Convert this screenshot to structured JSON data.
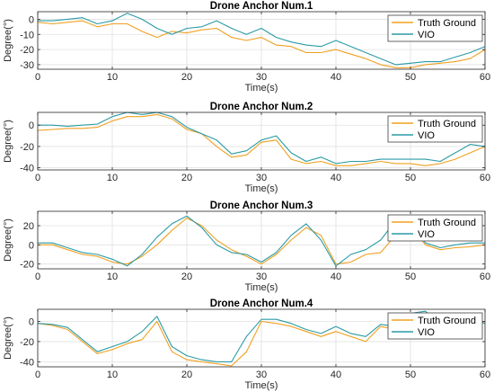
{
  "colors": {
    "truth": "#F0A020",
    "vio": "#2A9BA5",
    "axis": "#262626",
    "grid": "#E0E0E0"
  },
  "chart_data": [
    {
      "type": "line",
      "title": "Drone Anchor Num.1",
      "xlabel": "Time(s)",
      "ylabel": "Degree(°)",
      "xlim": [
        0,
        60
      ],
      "ylim": [
        -33,
        5
      ],
      "xticks": [
        "0",
        "10",
        "20",
        "30",
        "40",
        "50",
        "60"
      ],
      "yticks": [
        0,
        -10,
        -20,
        -30
      ],
      "ytick_labels": [
        "0",
        "-10",
        "-20",
        "-30"
      ],
      "grid": true,
      "legend": "top-right",
      "x": [
        0,
        2,
        4,
        6,
        8,
        10,
        12,
        14,
        16,
        18,
        20,
        22,
        24,
        26,
        28,
        30,
        32,
        34,
        36,
        38,
        40,
        42,
        44,
        46,
        48,
        50,
        52,
        54,
        56,
        58,
        60
      ],
      "series": [
        {
          "name": "Truth Ground",
          "color_key": "truth",
          "values": [
            -2,
            -3,
            -2,
            -1,
            -5,
            -3,
            -3,
            -8,
            -12,
            -8,
            -9,
            -7,
            -6,
            -12,
            -14,
            -12,
            -17,
            -18,
            -22,
            -22,
            -20,
            -23,
            -26,
            -30,
            -32,
            -32,
            -30,
            -29,
            -28,
            -26,
            -20
          ]
        },
        {
          "name": "VIO",
          "color_key": "vio",
          "values": [
            -1,
            -1,
            0,
            1,
            -3,
            -1,
            4,
            0,
            -6,
            -10,
            -6,
            -5,
            -1,
            -6,
            -10,
            -6,
            -12,
            -15,
            -17,
            -18,
            -14,
            -18,
            -22,
            -26,
            -30,
            -29,
            -28,
            -28,
            -25,
            -22,
            -18
          ]
        }
      ]
    },
    {
      "type": "line",
      "title": "Drone Anchor Num.2",
      "xlabel": "Time(s)",
      "ylabel": "Degree(°)",
      "xlim": [
        0,
        60
      ],
      "ylim": [
        -42,
        12
      ],
      "xticks": [
        "0",
        "10",
        "20",
        "30",
        "40",
        "50",
        "60"
      ],
      "yticks": [
        0,
        -20,
        -40
      ],
      "ytick_labels": [
        "0",
        "-20",
        "-40"
      ],
      "grid": true,
      "legend": "top-right",
      "x": [
        0,
        2,
        4,
        6,
        8,
        10,
        12,
        14,
        16,
        18,
        20,
        22,
        24,
        26,
        28,
        30,
        32,
        34,
        36,
        38,
        40,
        42,
        44,
        46,
        48,
        50,
        52,
        54,
        56,
        58,
        60
      ],
      "series": [
        {
          "name": "Truth Ground",
          "color_key": "truth",
          "values": [
            -5,
            -4,
            -3,
            -3,
            -2,
            4,
            8,
            8,
            10,
            6,
            -4,
            -8,
            -20,
            -30,
            -28,
            -16,
            -14,
            -32,
            -36,
            -34,
            -38,
            -38,
            -36,
            -34,
            -36,
            -36,
            -38,
            -36,
            -32,
            -26,
            -20
          ]
        },
        {
          "name": "VIO",
          "color_key": "vio",
          "values": [
            0,
            0,
            -1,
            0,
            1,
            8,
            12,
            10,
            12,
            8,
            -2,
            -8,
            -14,
            -27,
            -24,
            -14,
            -10,
            -26,
            -34,
            -30,
            -36,
            -34,
            -34,
            -32,
            -32,
            -32,
            -32,
            -34,
            -26,
            -18,
            -20
          ]
        }
      ]
    },
    {
      "type": "line",
      "title": "Drone Anchor Num.3",
      "xlabel": "Time(s)",
      "ylabel": "Degree(°)",
      "xlim": [
        0,
        60
      ],
      "ylim": [
        -25,
        35
      ],
      "xticks": [
        "0",
        "10",
        "20",
        "30",
        "40",
        "50",
        "60"
      ],
      "yticks": [
        20,
        0,
        -20
      ],
      "ytick_labels": [
        "20",
        "0",
        "-20"
      ],
      "grid": true,
      "legend": "top-right",
      "x": [
        0,
        2,
        4,
        6,
        8,
        10,
        12,
        14,
        16,
        18,
        20,
        22,
        24,
        26,
        28,
        30,
        32,
        34,
        36,
        38,
        40,
        42,
        44,
        46,
        48,
        50,
        52,
        54,
        56,
        58,
        60
      ],
      "series": [
        {
          "name": "Truth Ground",
          "color_key": "truth",
          "values": [
            0,
            0,
            -5,
            -10,
            -12,
            -18,
            -20,
            -12,
            0,
            15,
            28,
            20,
            5,
            -5,
            -12,
            -20,
            -10,
            5,
            18,
            10,
            -20,
            -18,
            -10,
            -8,
            10,
            20,
            0,
            -5,
            -3,
            -2,
            0
          ]
        },
        {
          "name": "VIO",
          "color_key": "vio",
          "values": [
            2,
            2,
            -3,
            -8,
            -10,
            -15,
            -22,
            -10,
            8,
            22,
            30,
            18,
            0,
            -8,
            -10,
            -18,
            -8,
            10,
            22,
            5,
            -22,
            -10,
            -5,
            5,
            25,
            24,
            2,
            -3,
            0,
            2,
            2
          ]
        }
      ]
    },
    {
      "type": "line",
      "title": "Drone Anchor Num.4",
      "xlabel": "Time(s)",
      "ylabel": "Degree(°)",
      "xlim": [
        0,
        60
      ],
      "ylim": [
        -45,
        12
      ],
      "xticks": [
        "0",
        "10",
        "20",
        "30",
        "40",
        "50",
        "60"
      ],
      "yticks": [
        0,
        -20,
        -40
      ],
      "ytick_labels": [
        "0",
        "-20",
        "-40"
      ],
      "grid": true,
      "legend": "top-right",
      "x": [
        0,
        2,
        4,
        6,
        8,
        10,
        12,
        14,
        16,
        18,
        20,
        22,
        24,
        26,
        28,
        30,
        32,
        34,
        36,
        38,
        40,
        42,
        44,
        46,
        48,
        50,
        52,
        54,
        56,
        58,
        60
      ],
      "series": [
        {
          "name": "Truth Ground",
          "color_key": "truth",
          "values": [
            -2,
            -4,
            -8,
            -20,
            -32,
            -28,
            -22,
            -18,
            0,
            -30,
            -38,
            -40,
            -42,
            -44,
            -30,
            0,
            -2,
            -5,
            -10,
            -15,
            -10,
            -15,
            -20,
            -5,
            -8,
            5,
            8,
            -5,
            -2,
            -2,
            0
          ]
        },
        {
          "name": "VIO",
          "color_key": "vio",
          "values": [
            -2,
            -3,
            -6,
            -18,
            -30,
            -25,
            -20,
            -10,
            5,
            -25,
            -34,
            -38,
            -40,
            -40,
            -15,
            2,
            2,
            -2,
            -8,
            -12,
            -5,
            -12,
            -15,
            -3,
            -5,
            8,
            10,
            -2,
            0,
            2,
            -2
          ]
        }
      ]
    }
  ]
}
